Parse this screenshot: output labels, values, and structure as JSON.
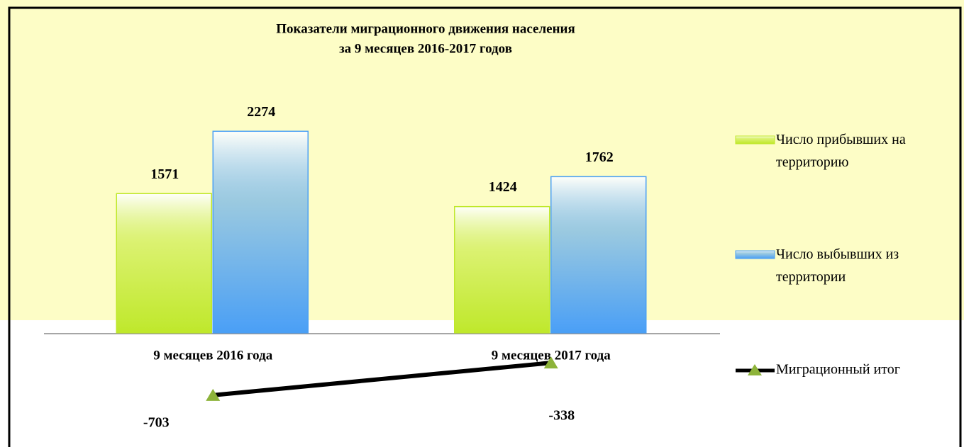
{
  "chart_data": {
    "type": "bar",
    "title": [
      "Показатели миграционного движения населения",
      "за 9 месяцев 2016-2017 годов"
    ],
    "categories": [
      "9 месяцев 2016 года",
      "9 месяцев 2017 года"
    ],
    "series": [
      {
        "name": "Число прибывших на территорию",
        "color": "#bfe82a",
        "values": [
          1571,
          1424
        ]
      },
      {
        "name": "Число выбывших из территории",
        "color": "#4a9ff5",
        "values": [
          2274,
          1762
        ]
      },
      {
        "name": "Миграционный итог",
        "type": "line",
        "color": "#000000",
        "marker_color": "#8db33a",
        "values": [
          -703,
          -338
        ]
      }
    ],
    "ylim": [
      -1000,
      2500
    ],
    "legend": "right"
  }
}
